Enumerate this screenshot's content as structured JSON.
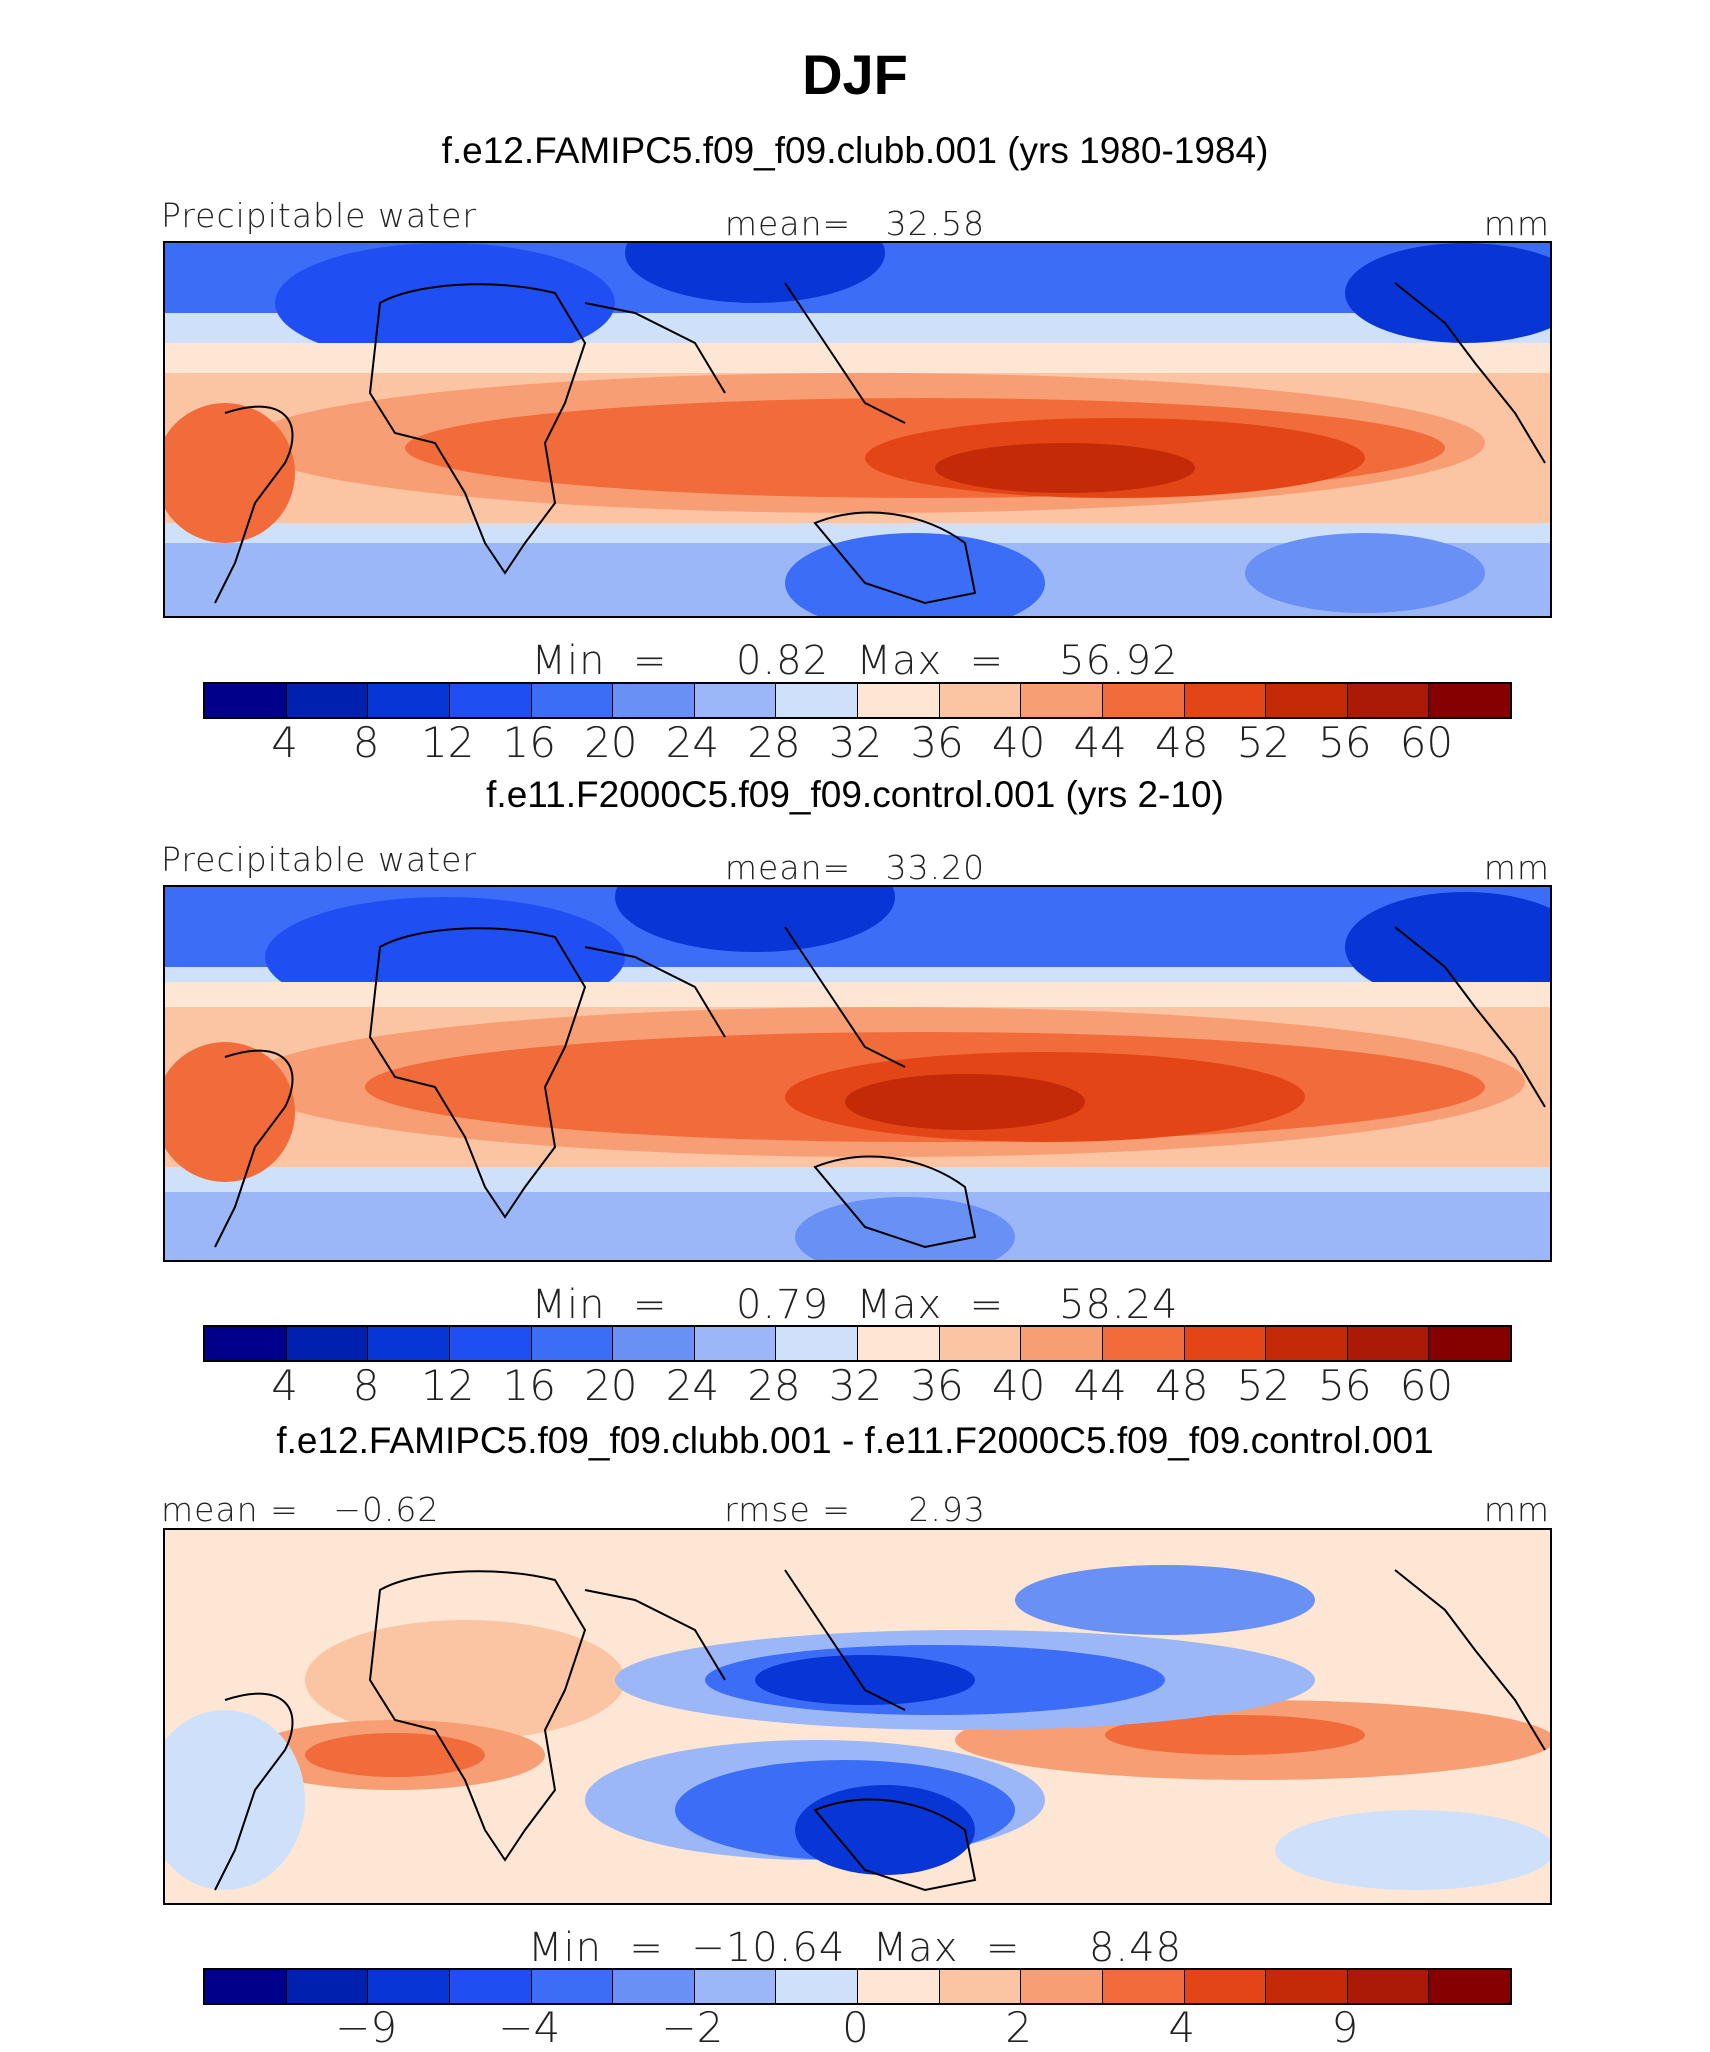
{
  "title": "DJF",
  "colors": {
    "abs_scale": [
      "#00008b",
      "#0020b0",
      "#0735d6",
      "#1f4ff3",
      "#3b6df6",
      "#6890f5",
      "#9bb7f7",
      "#cfe0fb",
      "#fde6d4",
      "#fbc4a3",
      "#f89e74",
      "#f26c3b",
      "#e44516",
      "#c42a08",
      "#aa1a06",
      "#870000"
    ],
    "diff_scale": [
      "#00008b",
      "#0020b0",
      "#0735d6",
      "#1f4ff3",
      "#3b6df6",
      "#6890f5",
      "#9bb7f7",
      "#cfe0fb",
      "#fde6d4",
      "#fbc4a3",
      "#f89e74",
      "#f26c3b",
      "#e44516",
      "#c42a08",
      "#aa1a06",
      "#870000"
    ]
  },
  "chart_data": [
    {
      "type": "heatmap",
      "panel_title": "f.e12.FAMIPC5.f09_f09.clubb.001 (yrs 1980-1984)",
      "left_label": "Precipitable water",
      "center_label": "mean=   32.58",
      "right_label": "mm",
      "mean": 32.58,
      "minmax_label": "Min  =     0.82  Max  =    56.92",
      "min": 0.82,
      "max": 56.92,
      "colorbar_ticks": [
        "4",
        "8",
        "12",
        "16",
        "20",
        "24",
        "28",
        "32",
        "36",
        "40",
        "44",
        "48",
        "52",
        "56",
        "60"
      ],
      "colorbar_levels": [
        4,
        8,
        12,
        16,
        20,
        24,
        28,
        32,
        36,
        40,
        44,
        48,
        52,
        56,
        60
      ]
    },
    {
      "type": "heatmap",
      "panel_title": "f.e11.F2000C5.f09_f09.control.001 (yrs 2-10)",
      "left_label": "Precipitable water",
      "center_label": "mean=   33.20",
      "right_label": "mm",
      "mean": 33.2,
      "minmax_label": "Min  =     0.79  Max  =    58.24",
      "min": 0.79,
      "max": 58.24,
      "colorbar_ticks": [
        "4",
        "8",
        "12",
        "16",
        "20",
        "24",
        "28",
        "32",
        "36",
        "40",
        "44",
        "48",
        "52",
        "56",
        "60"
      ],
      "colorbar_levels": [
        4,
        8,
        12,
        16,
        20,
        24,
        28,
        32,
        36,
        40,
        44,
        48,
        52,
        56,
        60
      ]
    },
    {
      "type": "heatmap",
      "panel_title": "f.e12.FAMIPC5.f09_f09.clubb.001 - f.e11.F2000C5.f09_f09.control.001",
      "left_label": "mean =   −0.62",
      "center_label": "rmse =     2.93",
      "right_label": "mm",
      "mean": -0.62,
      "rmse": 2.93,
      "minmax_label": "Min  =  −10.64  Max  =     8.48",
      "min": -10.64,
      "max": 8.48,
      "colorbar_ticks": [
        "−9",
        "−4",
        "−2",
        "0",
        "2",
        "4",
        "9"
      ],
      "colorbar_levels": [
        -9,
        -4,
        -2,
        0,
        2,
        4,
        9
      ]
    }
  ]
}
